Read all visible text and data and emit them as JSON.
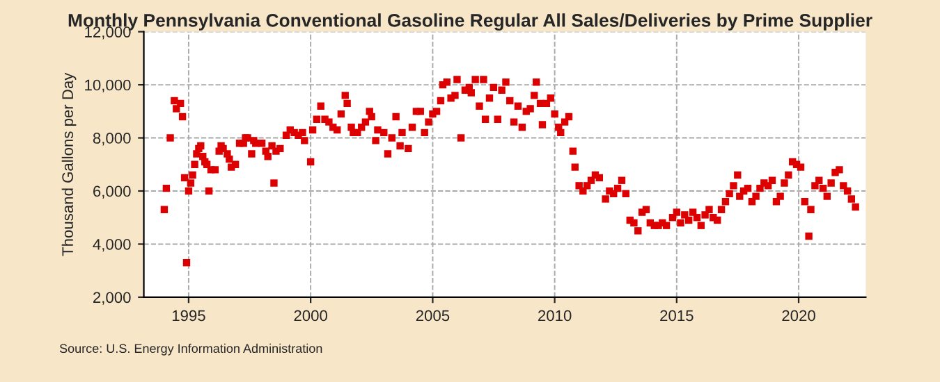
{
  "chart_data": {
    "type": "scatter",
    "title": "Monthly Pennsylvania Conventional Gasoline Regular All Sales/Deliveries by Prime Supplier",
    "ylabel": "Thousand Gallons per Day",
    "annotations": [
      "Source: U.S. Energy Information Administration"
    ],
    "marker": "square",
    "grid": true,
    "xlim": [
      "1993-03",
      "2022-10"
    ],
    "xticks": [
      {
        "value": "1995-01",
        "label": "1995"
      },
      {
        "value": "2000-01",
        "label": "2000"
      },
      {
        "value": "2005-01",
        "label": "2005"
      },
      {
        "value": "2010-01",
        "label": "2010"
      },
      {
        "value": "2015-01",
        "label": "2015"
      },
      {
        "value": "2020-01",
        "label": "2020"
      }
    ],
    "ylim": [
      2000,
      12000
    ],
    "yticks": [
      {
        "value": 2000,
        "label": "2,000"
      },
      {
        "value": 4000,
        "label": "4,000"
      },
      {
        "value": 6000,
        "label": "6,000"
      },
      {
        "value": 8000,
        "label": "8,000"
      },
      {
        "value": 10000,
        "label": "10,000"
      },
      {
        "value": 12000,
        "label": "12,000"
      }
    ],
    "x": [
      "1994-01",
      "1994-02",
      "1994-04",
      "1994-06",
      "1994-07",
      "1994-09",
      "1994-10",
      "1994-11",
      "1994-12",
      "1995-01",
      "1995-02",
      "1995-03",
      "1995-04",
      "1995-05",
      "1995-06",
      "1995-07",
      "1995-08",
      "1995-09",
      "1995-10",
      "1995-11",
      "1995-12",
      "1996-02",
      "1996-04",
      "1996-05",
      "1996-06",
      "1996-08",
      "1996-09",
      "1996-10",
      "1996-12",
      "1997-02",
      "1997-04",
      "1997-05",
      "1997-06",
      "1997-08",
      "1997-09",
      "1997-10",
      "1998-01",
      "1998-03",
      "1998-04",
      "1998-06",
      "1998-07",
      "1998-08",
      "1998-10",
      "1999-01",
      "1999-03",
      "1999-05",
      "1999-07",
      "1999-09",
      "1999-10",
      "2000-01",
      "2000-02",
      "2000-04",
      "2000-06",
      "2000-08",
      "2000-10",
      "2000-12",
      "2001-02",
      "2001-04",
      "2001-06",
      "2001-07",
      "2001-09",
      "2001-10",
      "2001-12",
      "2002-02",
      "2002-04",
      "2002-06",
      "2002-07",
      "2002-09",
      "2002-10",
      "2003-01",
      "2003-03",
      "2003-05",
      "2003-07",
      "2003-09",
      "2003-10",
      "2004-01",
      "2004-03",
      "2004-05",
      "2004-07",
      "2004-09",
      "2004-11",
      "2005-01",
      "2005-03",
      "2005-05",
      "2005-06",
      "2005-08",
      "2005-10",
      "2005-12",
      "2006-01",
      "2006-03",
      "2006-05",
      "2006-07",
      "2006-08",
      "2006-10",
      "2006-12",
      "2007-02",
      "2007-03",
      "2007-05",
      "2007-07",
      "2007-09",
      "2007-11",
      "2008-01",
      "2008-03",
      "2008-05",
      "2008-07",
      "2008-09",
      "2008-11",
      "2009-01",
      "2009-03",
      "2009-04",
      "2009-06",
      "2009-07",
      "2009-09",
      "2009-11",
      "2010-01",
      "2010-03",
      "2010-04",
      "2010-06",
      "2010-08",
      "2010-10",
      "2010-11",
      "2011-01",
      "2011-03",
      "2011-05",
      "2011-07",
      "2011-09",
      "2011-11",
      "2012-02",
      "2012-04",
      "2012-06",
      "2012-08",
      "2012-10",
      "2012-12",
      "2013-02",
      "2013-04",
      "2013-06",
      "2013-08",
      "2013-10",
      "2013-12",
      "2014-02",
      "2014-04",
      "2014-06",
      "2014-08",
      "2014-11",
      "2015-01",
      "2015-03",
      "2015-05",
      "2015-07",
      "2015-09",
      "2015-11",
      "2016-01",
      "2016-03",
      "2016-05",
      "2016-07",
      "2016-09",
      "2016-11",
      "2017-01",
      "2017-03",
      "2017-05",
      "2017-07",
      "2017-08",
      "2017-10",
      "2017-12",
      "2018-02",
      "2018-04",
      "2018-06",
      "2018-08",
      "2018-10",
      "2018-12",
      "2019-02",
      "2019-04",
      "2019-06",
      "2019-08",
      "2019-10",
      "2019-12",
      "2020-02",
      "2020-04",
      "2020-06",
      "2020-07",
      "2020-09",
      "2020-11",
      "2021-01",
      "2021-03",
      "2021-05",
      "2021-07",
      "2021-09",
      "2021-11",
      "2022-01",
      "2022-03",
      "2022-05"
    ],
    "series": [
      {
        "color": "#dd0000",
        "values": [
          5300,
          6100,
          8000,
          9400,
          9100,
          9300,
          8800,
          6500,
          3300,
          6000,
          6300,
          6600,
          7000,
          7400,
          7600,
          7700,
          7300,
          7100,
          7000,
          6000,
          6800,
          6800,
          7500,
          7700,
          7600,
          7400,
          7200,
          6900,
          7000,
          7800,
          7800,
          8000,
          8000,
          7400,
          7900,
          7800,
          7800,
          7500,
          7300,
          7700,
          6300,
          7500,
          7600,
          8100,
          8300,
          8200,
          8100,
          8200,
          7900,
          7100,
          8300,
          8700,
          9200,
          8700,
          8600,
          8400,
          8300,
          8900,
          9600,
          9300,
          8400,
          8200,
          8200,
          8400,
          8600,
          9000,
          8800,
          7900,
          8300,
          8200,
          7400,
          8000,
          8800,
          7700,
          8200,
          7600,
          8400,
          9000,
          9000,
          8200,
          8600,
          8900,
          9000,
          9400,
          10000,
          10100,
          9500,
          9600,
          10200,
          8000,
          9800,
          9900,
          9700,
          10200,
          9200,
          10200,
          8700,
          9500,
          9900,
          8700,
          9800,
          10100,
          9400,
          8600,
          9200,
          8400,
          9000,
          9100,
          9600,
          10100,
          9300,
          8500,
          9300,
          9500,
          8900,
          8400,
          8200,
          8600,
          8800,
          7500,
          6900,
          6200,
          6000,
          6200,
          6400,
          6600,
          6500,
          5700,
          6000,
          5900,
          6100,
          6400,
          5900,
          4900,
          4800,
          4500,
          5200,
          5300,
          4800,
          4700,
          4700,
          4800,
          4700,
          5000,
          5200,
          4800,
          5100,
          4900,
          5200,
          5000,
          4700,
          5100,
          5300,
          5000,
          4900,
          5300,
          5600,
          5900,
          6200,
          6600,
          5800,
          6000,
          6100,
          5600,
          5800,
          6100,
          6300,
          6200,
          6400,
          5600,
          5800,
          6300,
          6600,
          7100,
          7000,
          6900,
          5600,
          4300,
          5300,
          6200,
          6400,
          6100,
          5800,
          6300,
          6700,
          6800,
          6200,
          6000,
          5700,
          5400
        ]
      }
    ]
  }
}
